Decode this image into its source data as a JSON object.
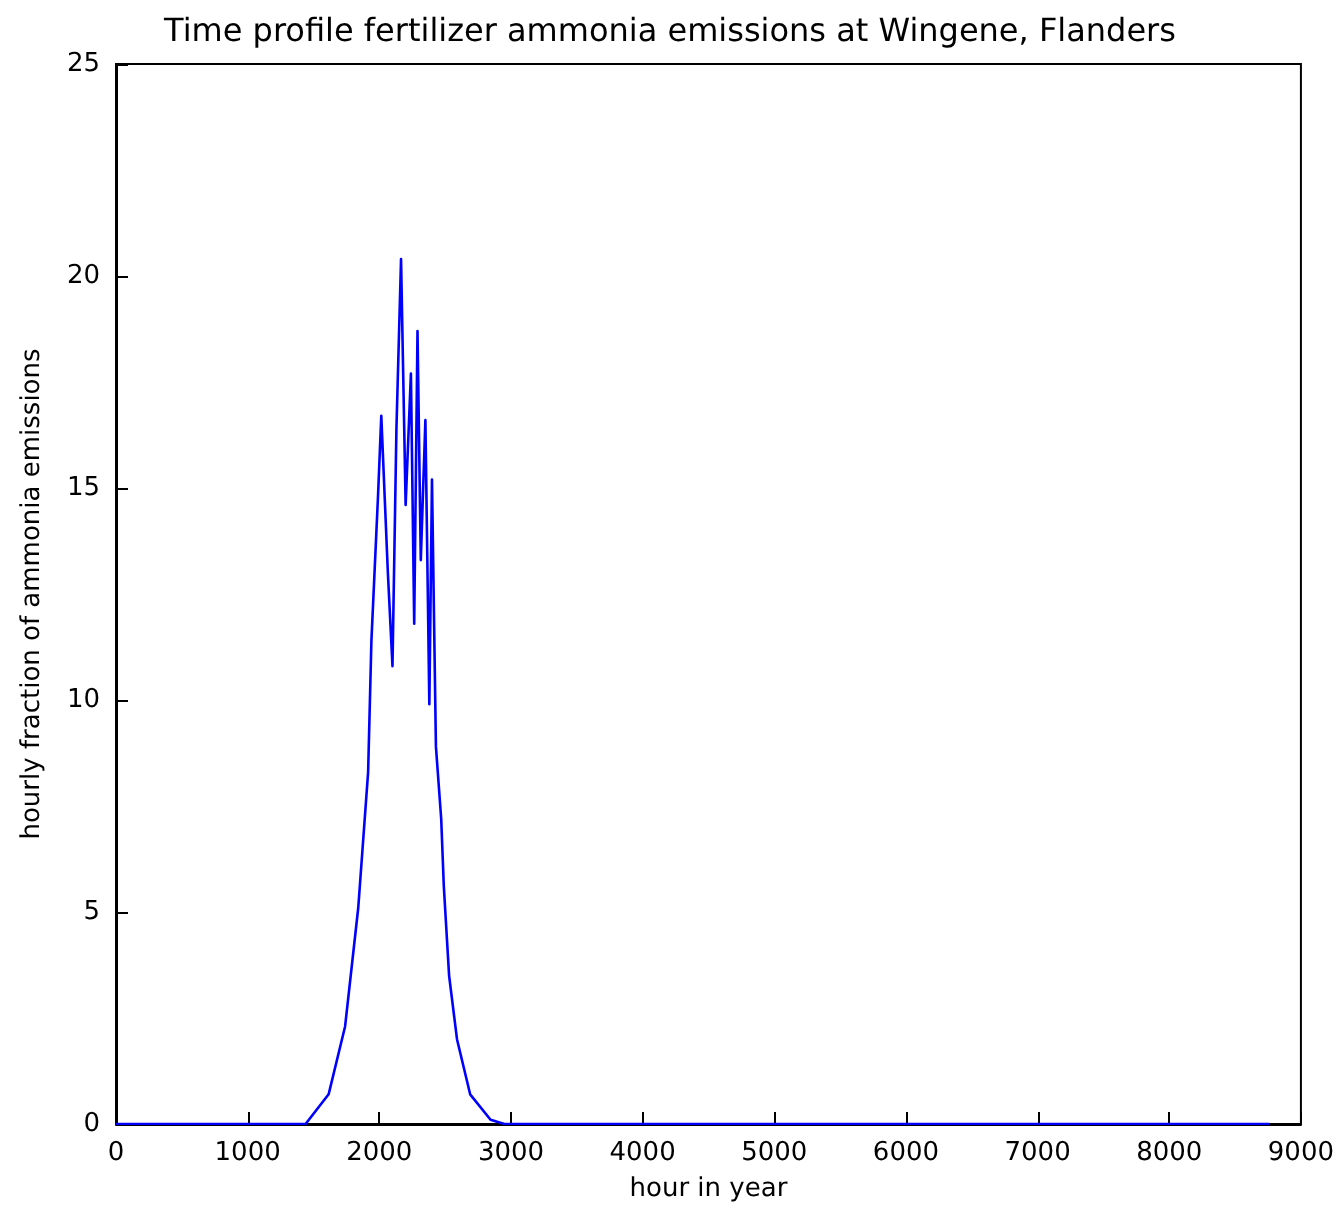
{
  "chart_data": {
    "type": "line",
    "title": "Time profile fertilizer ammonia emissions at Wingene, Flanders",
    "xlabel": "hour in year",
    "ylabel": "hourly fraction of ammonia emissions",
    "x": [
      0,
      1440,
      1615,
      1740,
      1840,
      1915,
      1940,
      1990,
      2015,
      2065,
      2100,
      2130,
      2165,
      2200,
      2240,
      2265,
      2290,
      2315,
      2350,
      2380,
      2400,
      2430,
      2470,
      2490,
      2530,
      2590,
      2690,
      2845,
      2950,
      8760
    ],
    "series": [
      {
        "color": "#0000ff",
        "values": [
          0,
          0,
          0.7,
          2.3,
          5.1,
          8.3,
          11.4,
          14.8,
          16.7,
          13,
          10.8,
          16.4,
          20.4,
          14.6,
          17.7,
          11.8,
          18.7,
          13.3,
          16.6,
          9.9,
          15.2,
          8.9,
          7.2,
          5.6,
          3.5,
          2,
          0.7,
          0.1,
          0,
          0
        ]
      }
    ],
    "xlim": [
      0,
      9000
    ],
    "xticks": [
      0,
      1000,
      2000,
      3000,
      4000,
      5000,
      6000,
      7000,
      8000,
      9000
    ],
    "ylim": [
      0,
      25
    ],
    "yticks": [
      0,
      5,
      10,
      15,
      20,
      25
    ],
    "grid": false,
    "marker": "none",
    "line_style": "solid"
  }
}
